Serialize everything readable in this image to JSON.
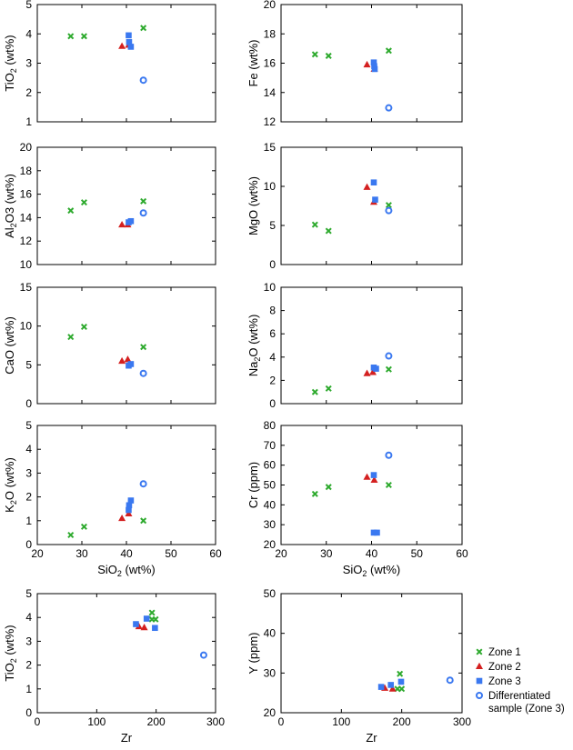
{
  "colors": {
    "zone1": "#2eaa2e",
    "zone2": "#d42020",
    "zone3": "#3a78f0",
    "diff": "#3a78f0"
  },
  "legend": {
    "placement": "right of bottom-right panel",
    "entries": [
      {
        "key": "zone1",
        "label": "Zone 1"
      },
      {
        "key": "zone2",
        "label": "Zone 2"
      },
      {
        "key": "zone3",
        "label": "Zone 3"
      },
      {
        "key": "diff",
        "label": "Differentiated",
        "label2": "sample (Zone 3)"
      }
    ]
  },
  "chart_data": [
    {
      "type": "scatter",
      "ylabel": "TiO2 (wt%)",
      "xlabel": "",
      "xlim": [
        20,
        60
      ],
      "ylim": [
        1,
        5
      ],
      "xticks": [
        20,
        30,
        40,
        50,
        60
      ],
      "yticks": [
        1,
        2,
        3,
        4,
        5
      ],
      "series": [
        {
          "key": "zone1",
          "x": [
            27.5,
            30.5,
            43.8
          ],
          "y": [
            3.92,
            3.92,
            4.2
          ]
        },
        {
          "key": "zone2",
          "x": [
            39.0,
            40.5
          ],
          "y": [
            3.58,
            3.62
          ]
        },
        {
          "key": "zone3",
          "x": [
            40.5,
            40.6,
            41.0
          ],
          "y": [
            3.95,
            3.72,
            3.56
          ]
        },
        {
          "key": "diff",
          "x": [
            43.8
          ],
          "y": [
            2.42
          ]
        }
      ]
    },
    {
      "type": "scatter",
      "ylabel": "Fe (wt%)",
      "xlabel": "",
      "xlim": [
        20,
        60
      ],
      "ylim": [
        12,
        20
      ],
      "xticks": [
        20,
        30,
        40,
        50,
        60
      ],
      "yticks": [
        12,
        14,
        16,
        18,
        20
      ],
      "series": [
        {
          "key": "zone1",
          "x": [
            27.5,
            30.5,
            43.8
          ],
          "y": [
            16.6,
            16.5,
            16.85
          ]
        },
        {
          "key": "zone2",
          "x": [
            39.0,
            40.6
          ],
          "y": [
            15.9,
            15.6
          ]
        },
        {
          "key": "zone3",
          "x": [
            40.5,
            40.6,
            40.7
          ],
          "y": [
            16.05,
            15.8,
            15.6
          ]
        },
        {
          "key": "diff",
          "x": [
            43.8
          ],
          "y": [
            12.95
          ]
        }
      ]
    },
    {
      "type": "scatter",
      "ylabel": "Al2O3 (wt%)",
      "xlabel": "",
      "xlim": [
        20,
        60
      ],
      "ylim": [
        10,
        20
      ],
      "xticks": [
        20,
        30,
        40,
        50,
        60
      ],
      "yticks": [
        10,
        12,
        14,
        16,
        18,
        20
      ],
      "series": [
        {
          "key": "zone1",
          "x": [
            27.5,
            30.5,
            43.8
          ],
          "y": [
            14.6,
            15.3,
            15.4
          ]
        },
        {
          "key": "zone2",
          "x": [
            39.0,
            40.3
          ],
          "y": [
            13.4,
            13.4
          ]
        },
        {
          "key": "zone3",
          "x": [
            40.5,
            41.0
          ],
          "y": [
            13.6,
            13.7
          ]
        },
        {
          "key": "diff",
          "x": [
            43.8
          ],
          "y": [
            14.4
          ]
        }
      ]
    },
    {
      "type": "scatter",
      "ylabel": "MgO (wt%)",
      "xlabel": "",
      "xlim": [
        20,
        60
      ],
      "ylim": [
        0,
        15
      ],
      "xticks": [
        20,
        30,
        40,
        50,
        60
      ],
      "yticks": [
        0,
        5,
        10,
        15
      ],
      "series": [
        {
          "key": "zone1",
          "x": [
            27.5,
            30.5,
            43.8
          ],
          "y": [
            5.1,
            4.3,
            7.6
          ]
        },
        {
          "key": "zone2",
          "x": [
            39.0,
            40.5
          ],
          "y": [
            9.9,
            8.0
          ]
        },
        {
          "key": "zone3",
          "x": [
            40.5,
            40.8
          ],
          "y": [
            10.5,
            8.3
          ]
        },
        {
          "key": "diff",
          "x": [
            43.8
          ],
          "y": [
            6.9
          ]
        }
      ]
    },
    {
      "type": "scatter",
      "ylabel": "CaO (wt%)",
      "xlabel": "",
      "xlim": [
        20,
        60
      ],
      "ylim": [
        0,
        15
      ],
      "xticks": [
        20,
        30,
        40,
        50,
        60
      ],
      "yticks": [
        0,
        5,
        10,
        15
      ],
      "series": [
        {
          "key": "zone1",
          "x": [
            27.5,
            30.5,
            43.8
          ],
          "y": [
            8.6,
            9.9,
            7.3
          ]
        },
        {
          "key": "zone2",
          "x": [
            39.0,
            40.3
          ],
          "y": [
            5.5,
            5.7
          ]
        },
        {
          "key": "zone3",
          "x": [
            40.5,
            41.0
          ],
          "y": [
            4.9,
            5.1
          ]
        },
        {
          "key": "diff",
          "x": [
            43.8
          ],
          "y": [
            3.9
          ]
        }
      ]
    },
    {
      "type": "scatter",
      "ylabel": "Na2O (wt%)",
      "xlabel": "",
      "xlim": [
        20,
        60
      ],
      "ylim": [
        0,
        10
      ],
      "xticks": [
        20,
        30,
        40,
        50,
        60
      ],
      "yticks": [
        0,
        2,
        4,
        6,
        8,
        10
      ],
      "series": [
        {
          "key": "zone1",
          "x": [
            27.5,
            30.5,
            43.8
          ],
          "y": [
            1.0,
            1.3,
            2.95
          ]
        },
        {
          "key": "zone2",
          "x": [
            39.0,
            40.3
          ],
          "y": [
            2.6,
            2.7
          ]
        },
        {
          "key": "zone3",
          "x": [
            40.5,
            41.0
          ],
          "y": [
            3.1,
            3.0
          ]
        },
        {
          "key": "diff",
          "x": [
            43.8
          ],
          "y": [
            4.1
          ]
        }
      ]
    },
    {
      "type": "scatter",
      "ylabel": "K2O (wt%)",
      "xlabel": "SiO2 (wt%)",
      "xlim": [
        20,
        60
      ],
      "ylim": [
        0,
        5
      ],
      "xticks": [
        20,
        30,
        40,
        50,
        60
      ],
      "yticks": [
        0,
        1,
        2,
        3,
        4,
        5
      ],
      "series": [
        {
          "key": "zone1",
          "x": [
            27.5,
            30.5,
            43.8
          ],
          "y": [
            0.4,
            0.75,
            1.0
          ]
        },
        {
          "key": "zone2",
          "x": [
            39.0,
            40.5
          ],
          "y": [
            1.1,
            1.3
          ]
        },
        {
          "key": "zone3",
          "x": [
            40.5,
            40.6,
            41.0
          ],
          "y": [
            1.45,
            1.65,
            1.85
          ]
        },
        {
          "key": "diff",
          "x": [
            43.8
          ],
          "y": [
            2.55
          ]
        }
      ]
    },
    {
      "type": "scatter",
      "ylabel": "Cr (ppm)",
      "xlabel": "SiO2 (wt%)",
      "xlim": [
        20,
        60
      ],
      "ylim": [
        20,
        80
      ],
      "xticks": [
        20,
        30,
        40,
        50,
        60
      ],
      "yticks": [
        20,
        30,
        40,
        50,
        60,
        70,
        80
      ],
      "series": [
        {
          "key": "zone1",
          "x": [
            27.5,
            30.5,
            43.8
          ],
          "y": [
            45.5,
            49.0,
            50.0
          ]
        },
        {
          "key": "zone2",
          "x": [
            39.0,
            40.6
          ],
          "y": [
            54.0,
            52.5
          ]
        },
        {
          "key": "zone3",
          "x": [
            40.5,
            40.5,
            41.2
          ],
          "y": [
            55.0,
            26.0,
            26.0
          ]
        },
        {
          "key": "diff",
          "x": [
            43.8
          ],
          "y": [
            65.0
          ]
        }
      ]
    },
    {
      "type": "scatter",
      "ylabel": "TiO2 (wt%)",
      "xlabel": "Zr",
      "xlim": [
        0,
        300
      ],
      "ylim": [
        0,
        5
      ],
      "xticks": [
        0,
        100,
        200,
        300
      ],
      "yticks": [
        0,
        1,
        2,
        3,
        4,
        5
      ],
      "series": [
        {
          "key": "zone1",
          "x": [
            193,
            193,
            199
          ],
          "y": [
            4.2,
            3.92,
            3.92
          ]
        },
        {
          "key": "zone2",
          "x": [
            171,
            180
          ],
          "y": [
            3.62,
            3.58
          ]
        },
        {
          "key": "zone3",
          "x": [
            166,
            184,
            198
          ],
          "y": [
            3.72,
            3.95,
            3.56
          ]
        },
        {
          "key": "diff",
          "x": [
            280
          ],
          "y": [
            2.42
          ]
        }
      ]
    },
    {
      "type": "scatter",
      "ylabel": "Y (ppm)",
      "xlabel": "Zr",
      "xlim": [
        0,
        300
      ],
      "ylim": [
        20,
        50
      ],
      "xticks": [
        0,
        100,
        200,
        300
      ],
      "yticks": [
        20,
        30,
        40,
        50
      ],
      "series": [
        {
          "key": "zone1",
          "x": [
            193,
            197,
            200
          ],
          "y": [
            26.0,
            29.8,
            26.0
          ]
        },
        {
          "key": "zone2",
          "x": [
            172,
            185
          ],
          "y": [
            26.2,
            26.0
          ]
        },
        {
          "key": "zone3",
          "x": [
            166,
            182,
            199
          ],
          "y": [
            26.5,
            27.0,
            27.8
          ]
        },
        {
          "key": "diff",
          "x": [
            280
          ],
          "y": [
            28.2
          ]
        }
      ]
    }
  ]
}
